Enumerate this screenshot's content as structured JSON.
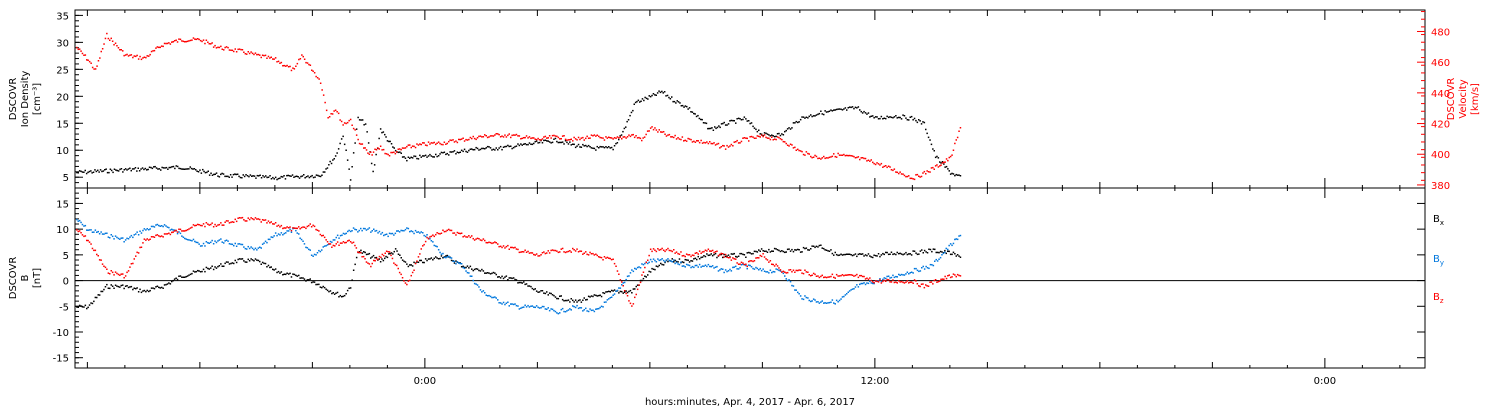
{
  "footer_label": "hours:minutes, Apr.  4, 2017 - Apr.  6, 2017",
  "colors": {
    "black": "#000000",
    "red": "#ff0000",
    "blue": "#0077dd"
  },
  "x_ticks": [
    "0:00",
    "12:00",
    "0:00"
  ],
  "chart_data": [
    {
      "type": "scatter",
      "panel": "top",
      "ylabel_left": [
        "DSCOVR",
        "Ion Density",
        "[cm⁻³]"
      ],
      "ylabel_right": [
        "DSCOVR",
        "Velocity",
        "[km/s]"
      ],
      "x_unit": "hours",
      "xlim": [
        -9.33,
        26.67
      ],
      "ylim_left": [
        3,
        36
      ],
      "ylim_right": [
        378,
        494
      ],
      "left_ticks": [
        5,
        10,
        15,
        20,
        25,
        30,
        35
      ],
      "right_ticks": [
        380,
        400,
        420,
        440,
        460,
        480
      ],
      "series": [
        {
          "color": "black",
          "axis": "left",
          "x": [
            -9.3,
            -8,
            -6.5,
            -5.5,
            -4,
            -2.8,
            -2.4,
            -2.2,
            -2,
            -1.8,
            -1.6,
            -1.4,
            -1.2,
            -0.8,
            -0.5,
            0,
            0.5,
            1,
            1.5,
            2,
            2.5,
            3,
            3.5,
            4,
            4.5,
            5,
            5.3,
            5.6,
            6,
            6.3,
            6.6,
            7,
            7.3,
            7.6,
            8,
            8.5,
            9,
            9.5,
            10,
            10.5,
            11,
            11.5,
            12,
            12.5,
            13,
            13.3,
            13.6,
            14,
            14.3
          ],
          "y": [
            6,
            6.5,
            7,
            5.5,
            5,
            5.5,
            9,
            13,
            5,
            16,
            15,
            6,
            14,
            10,
            8.5,
            9,
            9.5,
            10,
            10.5,
            10.5,
            11,
            11.5,
            12,
            11,
            10.5,
            10.5,
            14,
            19,
            20,
            21,
            19.5,
            18,
            16,
            14,
            15,
            16,
            13,
            13,
            16,
            17,
            17.5,
            18,
            16,
            16.5,
            16,
            15,
            9,
            6,
            5
          ]
        },
        {
          "color": "red",
          "axis": "right",
          "x": [
            -9.3,
            -9,
            -8.8,
            -8.5,
            -8,
            -7.5,
            -7,
            -6.5,
            -6,
            -5.5,
            -5,
            -4.5,
            -4,
            -3.5,
            -3.3,
            -3,
            -2.8,
            -2.6,
            -2.4,
            -2.2,
            -2,
            -1.8,
            -1.5,
            -1.2,
            -1,
            -0.5,
            0,
            0.5,
            1,
            1.5,
            2,
            2.5,
            3,
            3.5,
            4,
            4.5,
            5,
            5.5,
            5.8,
            6,
            6.5,
            7,
            7.5,
            8,
            8.5,
            9,
            9.5,
            10,
            10.5,
            11,
            11.5,
            12,
            12.5,
            13,
            13.3,
            13.6,
            14,
            14.3
          ],
          "y": [
            470,
            462,
            455,
            478,
            465,
            463,
            472,
            475,
            475,
            470,
            468,
            465,
            462,
            455,
            465,
            455,
            448,
            425,
            430,
            420,
            423,
            410,
            400,
            405,
            400,
            405,
            407,
            408,
            410,
            412,
            413,
            412,
            410,
            412,
            410,
            412,
            410,
            413,
            410,
            418,
            412,
            410,
            408,
            405,
            410,
            412,
            410,
            402,
            398,
            400,
            398,
            395,
            390,
            385,
            388,
            392,
            398,
            420
          ]
        }
      ]
    },
    {
      "type": "scatter",
      "panel": "bottom",
      "ylabel_left": [
        "DSCOVR",
        "B",
        "[nT]"
      ],
      "x_unit": "hours",
      "xlim": [
        -9.33,
        26.67
      ],
      "ylim": [
        -17,
        18
      ],
      "y_ticks": [
        -15,
        -10,
        -5,
        0,
        5,
        10,
        15
      ],
      "zero_line": true,
      "legend": [
        "B",
        "B",
        "B"
      ],
      "legend_subscripts": [
        "x",
        "y",
        "z"
      ],
      "legend_colors": [
        "black",
        "blue",
        "red"
      ],
      "series": [
        {
          "color": "black",
          "x": [
            -9.3,
            -9,
            -8.5,
            -8,
            -7.5,
            -7,
            -6.5,
            -6,
            -5.5,
            -5,
            -4.5,
            -4,
            -3.5,
            -3,
            -2.5,
            -2.2,
            -2,
            -1.8,
            -1.5,
            -1.2,
            -0.8,
            -0.5,
            0,
            0.5,
            1,
            1.5,
            2,
            2.5,
            3,
            3.5,
            4,
            4.5,
            5,
            5.5,
            6,
            6.5,
            7,
            7.5,
            8,
            8.5,
            9,
            9.5,
            10,
            10.5,
            11,
            11.5,
            12,
            12.5,
            13,
            13.5,
            14,
            14.3
          ],
          "y": [
            -5,
            -5,
            -1,
            -1,
            -2,
            -1,
            1,
            2,
            3,
            4,
            4,
            2,
            1,
            0,
            -2,
            -3,
            -1,
            6,
            5,
            4,
            6,
            3,
            4,
            5,
            3,
            2,
            1,
            0,
            -2,
            -3,
            -4,
            -3,
            -2,
            -2,
            2,
            4,
            4,
            5,
            5,
            5,
            6,
            6,
            6,
            7,
            5,
            5,
            5,
            5.5,
            5.5,
            6,
            5.5,
            4.5
          ]
        },
        {
          "color": "blue",
          "x": [
            -9.3,
            -9,
            -8.5,
            -8,
            -7.5,
            -7,
            -6.5,
            -6,
            -5.5,
            -5,
            -4.5,
            -4,
            -3.5,
            -3,
            -2.5,
            -2,
            -1.5,
            -1,
            -0.5,
            0,
            0.5,
            1,
            1.5,
            2,
            2.5,
            3,
            3.5,
            4,
            4.5,
            5,
            5.5,
            6,
            6.5,
            7,
            7.5,
            8,
            8.5,
            9,
            9.5,
            10,
            10.5,
            11,
            11.5,
            12,
            12.5,
            13,
            13.5,
            14,
            14.3
          ],
          "y": [
            12,
            10,
            9,
            8,
            10,
            11,
            9,
            7,
            8,
            7,
            6,
            9,
            10,
            5,
            8,
            10,
            10,
            9,
            10,
            9,
            5,
            3,
            -2,
            -4,
            -5,
            -5,
            -6,
            -5,
            -6,
            -3,
            2,
            4,
            4,
            3,
            3,
            2,
            3,
            2,
            2,
            -3,
            -4,
            -4,
            -1,
            0,
            1,
            2,
            3,
            7,
            9
          ]
        },
        {
          "color": "red",
          "x": [
            -9.3,
            -9,
            -8.5,
            -8,
            -7.5,
            -7,
            -6.5,
            -6,
            -5.5,
            -5,
            -4.5,
            -4,
            -3.5,
            -3,
            -2.5,
            -2,
            -1.5,
            -1,
            -0.5,
            0,
            0.5,
            1,
            1.5,
            2,
            2.5,
            3,
            3.5,
            4,
            4.5,
            5,
            5.5,
            6,
            6.5,
            7,
            7.5,
            8,
            8.5,
            9,
            9.5,
            10,
            10.5,
            11,
            11.5,
            12,
            12.5,
            13,
            13.3,
            13.6,
            14,
            14.3
          ],
          "y": [
            10,
            8,
            2,
            1,
            8,
            9,
            10,
            11,
            11,
            12,
            12,
            11,
            10,
            11,
            7,
            8,
            3,
            6,
            -1,
            8,
            10,
            9,
            8,
            7,
            6,
            5,
            6,
            6,
            5,
            4,
            -5,
            6,
            6,
            5,
            6,
            5,
            3,
            5,
            2,
            2,
            1,
            1,
            1,
            0,
            0,
            0,
            -1,
            0,
            1,
            1
          ]
        }
      ]
    }
  ]
}
